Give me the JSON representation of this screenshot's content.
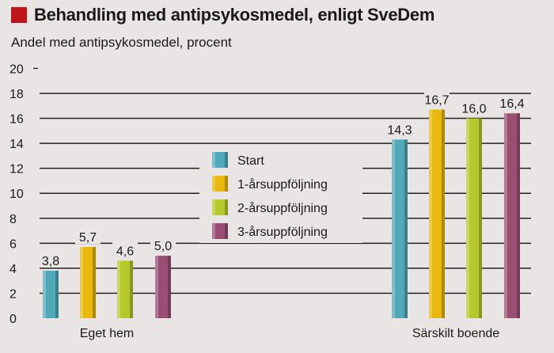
{
  "chart_data": {
    "type": "bar",
    "title": "Behandling med antipsykosmedel, enligt SveDem",
    "ylabel": "Andel med antipsykosmedel, procent",
    "xlabel": "",
    "ylim": [
      0,
      20
    ],
    "yticks": [
      0,
      2,
      4,
      6,
      8,
      10,
      12,
      14,
      16,
      18,
      20
    ],
    "grid": true,
    "legend_position": "center",
    "categories": [
      "Eget hem",
      "Särskilt boende"
    ],
    "series": [
      {
        "name": "Start",
        "values": [
          3.8,
          14.3
        ],
        "labels": [
          "3,8",
          "14,3"
        ],
        "color": "#4fa9b8"
      },
      {
        "name": "1-årsuppföljning",
        "values": [
          5.7,
          16.7
        ],
        "labels": [
          "5,7",
          "16,7"
        ],
        "color": "#e8b80f"
      },
      {
        "name": "2-årsuppföljning",
        "values": [
          4.6,
          16.0
        ],
        "labels": [
          "4,6",
          "16,0"
        ],
        "color": "#b5c82e"
      },
      {
        "name": "3-årsuppföljning",
        "values": [
          5.0,
          16.4
        ],
        "labels": [
          "5,0",
          "16,4"
        ],
        "color": "#9a4e74"
      }
    ]
  }
}
